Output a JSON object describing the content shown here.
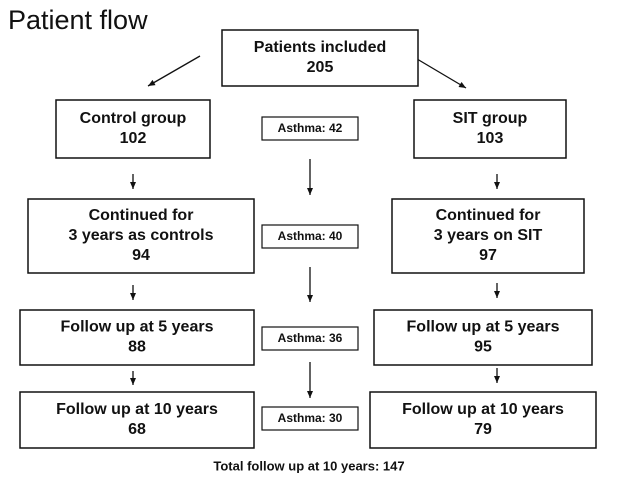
{
  "title": "Patient flow",
  "nodes": [
    {
      "lines": [
        "Patients included",
        "205"
      ]
    },
    {
      "lines": [
        "Control group",
        "102"
      ]
    },
    {
      "lines": [
        "SIT group",
        "103"
      ]
    },
    {
      "lines": [
        "Continued for",
        "3 years as controls",
        "94"
      ]
    },
    {
      "lines": [
        "Continued for",
        "3 years on SIT",
        "97"
      ]
    },
    {
      "lines": [
        "Follow up at 5 years",
        "88"
      ]
    },
    {
      "lines": [
        "Follow up at 5 years",
        "95"
      ]
    },
    {
      "lines": [
        "Follow up at 10 years",
        "68"
      ]
    },
    {
      "lines": [
        "Follow up at 10 years",
        "79"
      ]
    }
  ],
  "asthma": [
    "Asthma: 42",
    "Asthma: 40",
    "Asthma: 36",
    "Asthma: 30"
  ],
  "footer": "Total follow up at 10 years: 147"
}
